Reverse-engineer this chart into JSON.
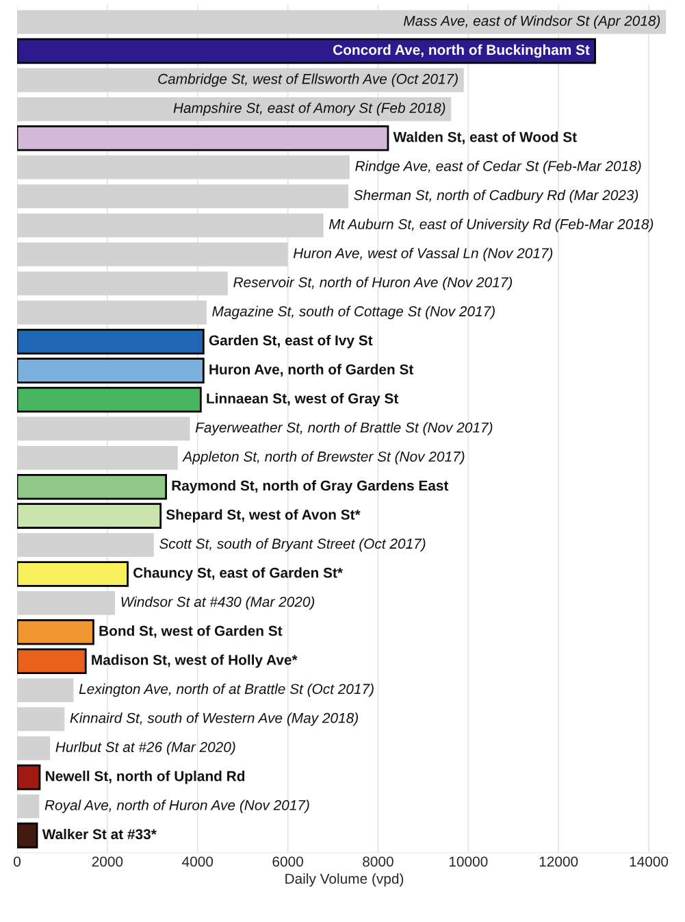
{
  "chart_data": {
    "type": "bar",
    "orientation": "horizontal",
    "xlabel": "Daily Volume (vpd)",
    "xlim": [
      0,
      14500
    ],
    "xticks": [
      0,
      2000,
      4000,
      6000,
      8000,
      10000,
      12000,
      14000
    ],
    "grid": "x",
    "tick_labels": "x",
    "categories": [
      "Mass Ave, east of Windsor St (Apr 2018)",
      "Concord Ave, north of Buckingham St",
      "Cambridge St, west of Ellsworth Ave (Oct 2017)",
      "Hampshire St, east of Amory St (Feb 2018)",
      "Walden St, east of Wood St",
      "Rindge Ave, east of Cedar St (Feb-Mar 2018)",
      "Sherman St, north of Cadbury Rd (Mar 2023)",
      "Mt Auburn St, east of University Rd (Feb-Mar 2018)",
      "Huron Ave, west of Vassal Ln (Nov 2017)",
      "Reservoir St, north of Huron Ave (Nov 2017)",
      "Magazine St, south of Cottage St (Nov 2017)",
      "Garden St, east of Ivy St",
      "Huron Ave, north of Garden St",
      "Linnaean St, west of Gray St",
      "Fayerweather St, north of Brattle St (Nov 2017)",
      "Appleton St, north of Brewster St (Nov 2017)",
      "Raymond St, north of Gray Gardens East",
      "Shepard St, west of Avon St*",
      "Scott St, south of Bryant Street (Oct 2017)",
      "Chauncy St, east of Garden St*",
      "Windsor St at #430 (Mar 2020)",
      "Bond St, west of Garden St",
      "Madison St, west of Holly Ave*",
      "Lexington Ave, north of at Brattle St (Oct 2017)",
      "Kinnaird St, south of Western Ave (May 2018)",
      "Hurlbut St at #26 (Mar 2020)",
      "Newell St, north of Upland Rd",
      "Royal Ave, north of Huron Ave (Nov 2017)",
      "Walker St at #33*"
    ],
    "series": [
      {
        "color": "#d3d2d3",
        "values": [
          14380,
          null,
          9900,
          9620,
          null,
          7370,
          7340,
          6790,
          6000,
          4670,
          4200,
          null,
          null,
          null,
          3830,
          3560,
          null,
          null,
          3030,
          null,
          2170,
          null,
          null,
          1250,
          1050,
          730,
          null,
          490,
          null
        ]
      },
      {
        "color": "#000000",
        "colors": [
          null,
          "#2e1a8c",
          null,
          null,
          "#d4b8d9",
          null,
          null,
          null,
          null,
          null,
          null,
          "#1f66b5",
          "#7bb0de",
          "#47b562",
          null,
          null,
          "#90c987",
          "#cbe3ac",
          null,
          "#f7f05a",
          null,
          "#f0962f",
          "#e9601c",
          null,
          null,
          null,
          "#a21912",
          null,
          "#421a10"
        ],
        "values": [
          null,
          12810,
          null,
          null,
          8220,
          null,
          null,
          null,
          null,
          null,
          null,
          4130,
          4130,
          4070,
          null,
          null,
          3300,
          3180,
          null,
          2450,
          null,
          1690,
          1520,
          null,
          null,
          null,
          500,
          null,
          440
        ]
      }
    ]
  }
}
